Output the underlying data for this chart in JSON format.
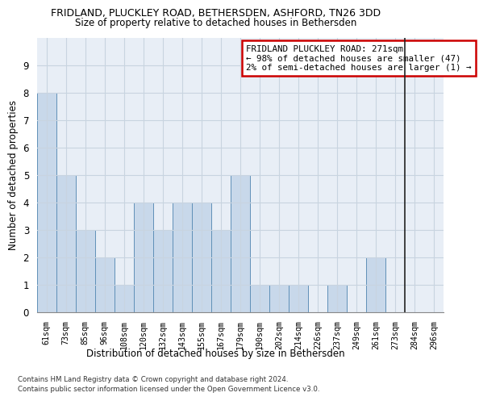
{
  "title1": "FRIDLAND, PLUCKLEY ROAD, BETHERSDEN, ASHFORD, TN26 3DD",
  "title2": "Size of property relative to detached houses in Bethersden",
  "xlabel": "Distribution of detached houses by size in Bethersden",
  "ylabel": "Number of detached properties",
  "footer1": "Contains HM Land Registry data © Crown copyright and database right 2024.",
  "footer2": "Contains public sector information licensed under the Open Government Licence v3.0.",
  "categories": [
    "61sqm",
    "73sqm",
    "85sqm",
    "96sqm",
    "108sqm",
    "120sqm",
    "132sqm",
    "143sqm",
    "155sqm",
    "167sqm",
    "179sqm",
    "190sqm",
    "202sqm",
    "214sqm",
    "226sqm",
    "237sqm",
    "249sqm",
    "261sqm",
    "273sqm",
    "284sqm",
    "296sqm"
  ],
  "values": [
    8,
    5,
    3,
    2,
    1,
    4,
    3,
    4,
    4,
    3,
    5,
    1,
    1,
    1,
    0,
    1,
    0,
    2,
    0,
    0,
    0
  ],
  "bar_color": "#c8d8ea",
  "bar_edge_color": "#6090b8",
  "annotation_text": "FRIDLAND PLUCKLEY ROAD: 271sqm\n← 98% of detached houses are smaller (47)\n2% of semi-detached houses are larger (1) →",
  "annotation_box_color": "#cc0000",
  "vline_x_index": 18.5,
  "ylim": [
    0,
    10
  ],
  "yticks": [
    0,
    1,
    2,
    3,
    4,
    5,
    6,
    7,
    8,
    9,
    10
  ],
  "grid_color": "#c8d4e0",
  "bg_color": "#e8eef6",
  "property_vline_color": "#222222"
}
